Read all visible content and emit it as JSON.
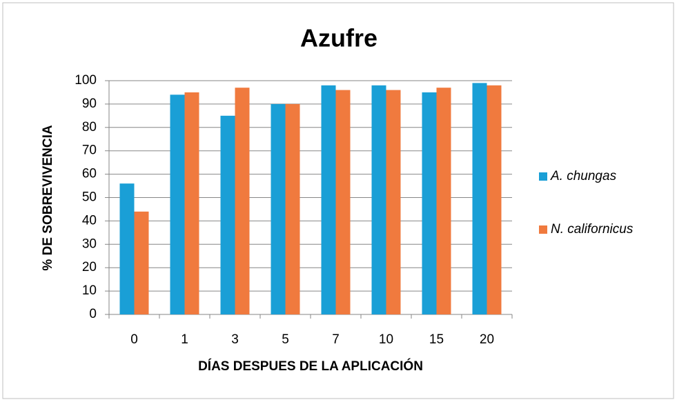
{
  "chart_data": {
    "type": "bar",
    "title": "Azufre",
    "x_label": "DÍAS DESPUES DE LA APLICACIÓN",
    "y_label": "% DE SOBREVIVENCIA",
    "categories": [
      "0",
      "1",
      "3",
      "5",
      "7",
      "10",
      "15",
      "20"
    ],
    "series": [
      {
        "name": "A. chungas",
        "color": "#1a9fd6",
        "values": [
          56,
          94,
          85,
          90,
          98,
          98,
          95,
          99
        ]
      },
      {
        "name": "N. californicus",
        "color": "#f07a3e",
        "values": [
          44,
          95,
          97,
          90,
          96,
          96,
          97,
          98
        ]
      }
    ],
    "ylim": [
      0,
      100
    ],
    "yticks": [
      0,
      10,
      20,
      30,
      40,
      50,
      60,
      70,
      80,
      90,
      100
    ],
    "grid": true,
    "legend": "right"
  }
}
